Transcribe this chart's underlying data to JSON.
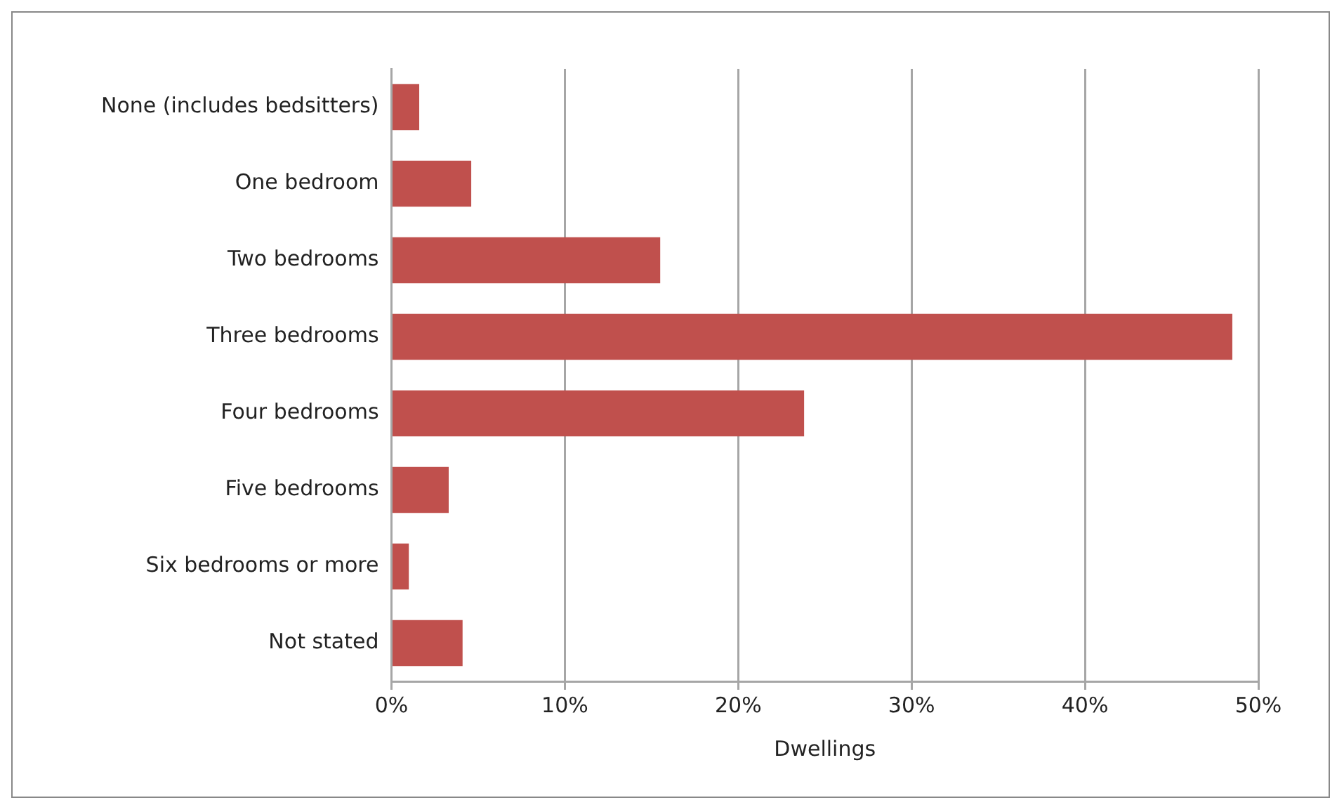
{
  "chart_data": {
    "type": "bar",
    "orientation": "horizontal",
    "xlabel": "Dwellings",
    "categories": [
      "None (includes bedsitters)",
      "One bedroom",
      "Two bedrooms",
      "Three bedrooms",
      "Four bedrooms",
      "Five bedrooms",
      "Six bedrooms or more",
      "Not stated"
    ],
    "values": [
      1.6,
      4.6,
      15.5,
      48.5,
      23.8,
      3.3,
      1.0,
      4.1
    ],
    "color": "#c0504d",
    "xlim": [
      0,
      50
    ],
    "xticks": [
      {
        "value": 0,
        "label": "0%"
      },
      {
        "value": 10,
        "label": "10%"
      },
      {
        "value": 20,
        "label": "20%"
      },
      {
        "value": 30,
        "label": "30%"
      },
      {
        "value": 40,
        "label": "40%"
      },
      {
        "value": 50,
        "label": "50%"
      }
    ],
    "grid": "x"
  }
}
